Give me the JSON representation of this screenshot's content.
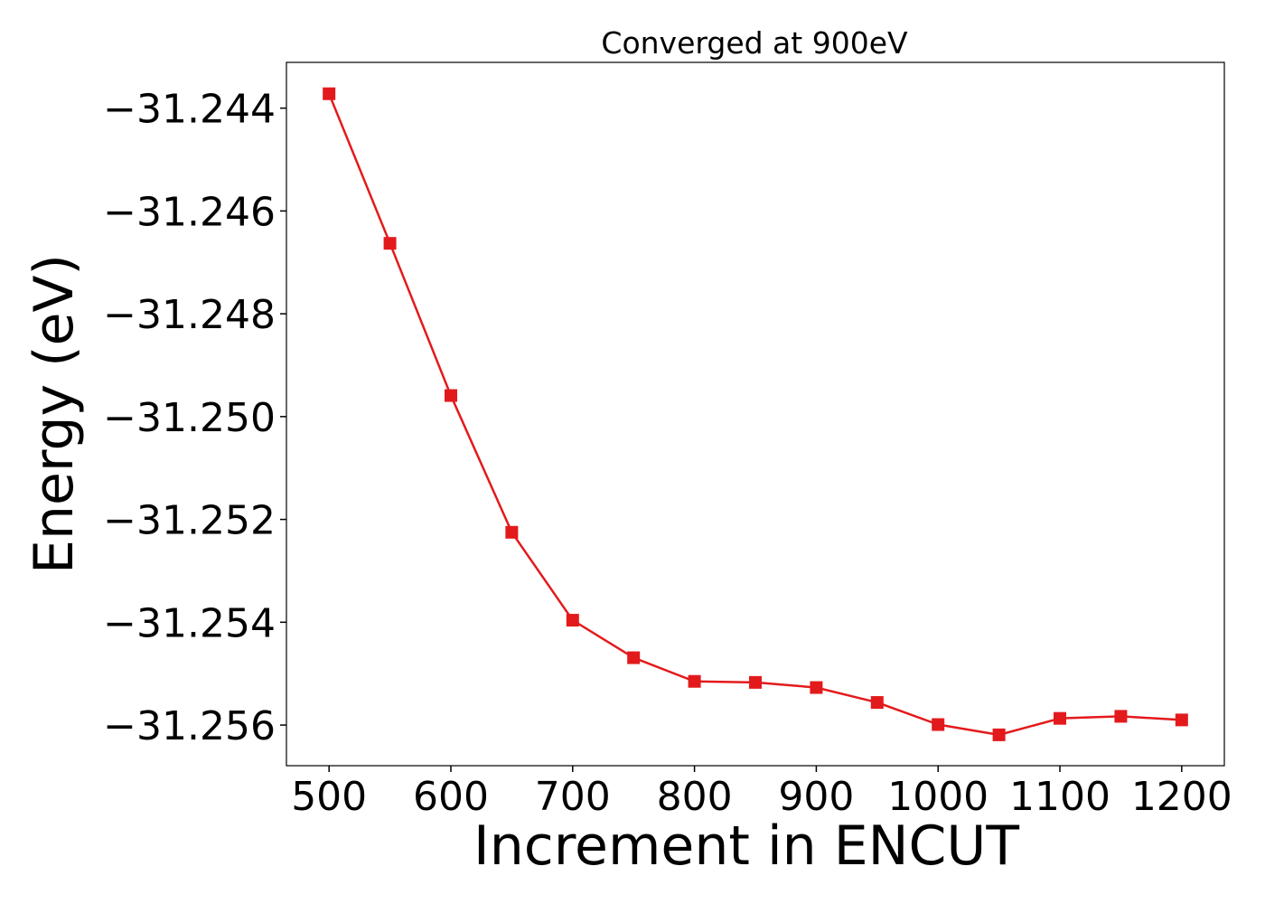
{
  "chart_data": {
    "type": "line",
    "title": "Converged at 900eV",
    "xlabel": "Increment in ENCUT",
    "ylabel": "Energy (eV)",
    "x": [
      500,
      550,
      600,
      650,
      700,
      750,
      800,
      850,
      900,
      950,
      1000,
      1050,
      1100,
      1150,
      1200
    ],
    "series": [
      {
        "values": [
          -31.24372,
          -31.24663,
          -31.24959,
          -31.25225,
          -31.25396,
          -31.25469,
          -31.25515,
          -31.25517,
          -31.25527,
          -31.25556,
          -31.25599,
          -31.25619,
          -31.25587,
          -31.25583,
          -31.2559
        ],
        "color": "#e31a1c",
        "marker": "square"
      }
    ],
    "xticks": [
      500,
      600,
      700,
      800,
      900,
      1000,
      1100,
      1200
    ],
    "xtick_labels": [
      "500",
      "600",
      "700",
      "800",
      "900",
      "1000",
      "1100",
      "1200"
    ],
    "yticks": [
      -31.256,
      -31.254,
      -31.252,
      -31.25,
      -31.248,
      -31.246,
      -31.244
    ],
    "ytick_labels": [
      "−31.256",
      "−31.254",
      "−31.252",
      "−31.250",
      "−31.248",
      "−31.246",
      "−31.244"
    ],
    "xlim": [
      465,
      1235
    ],
    "ylim": [
      -31.25679,
      -31.24311
    ],
    "grid": false,
    "legend": "none"
  }
}
